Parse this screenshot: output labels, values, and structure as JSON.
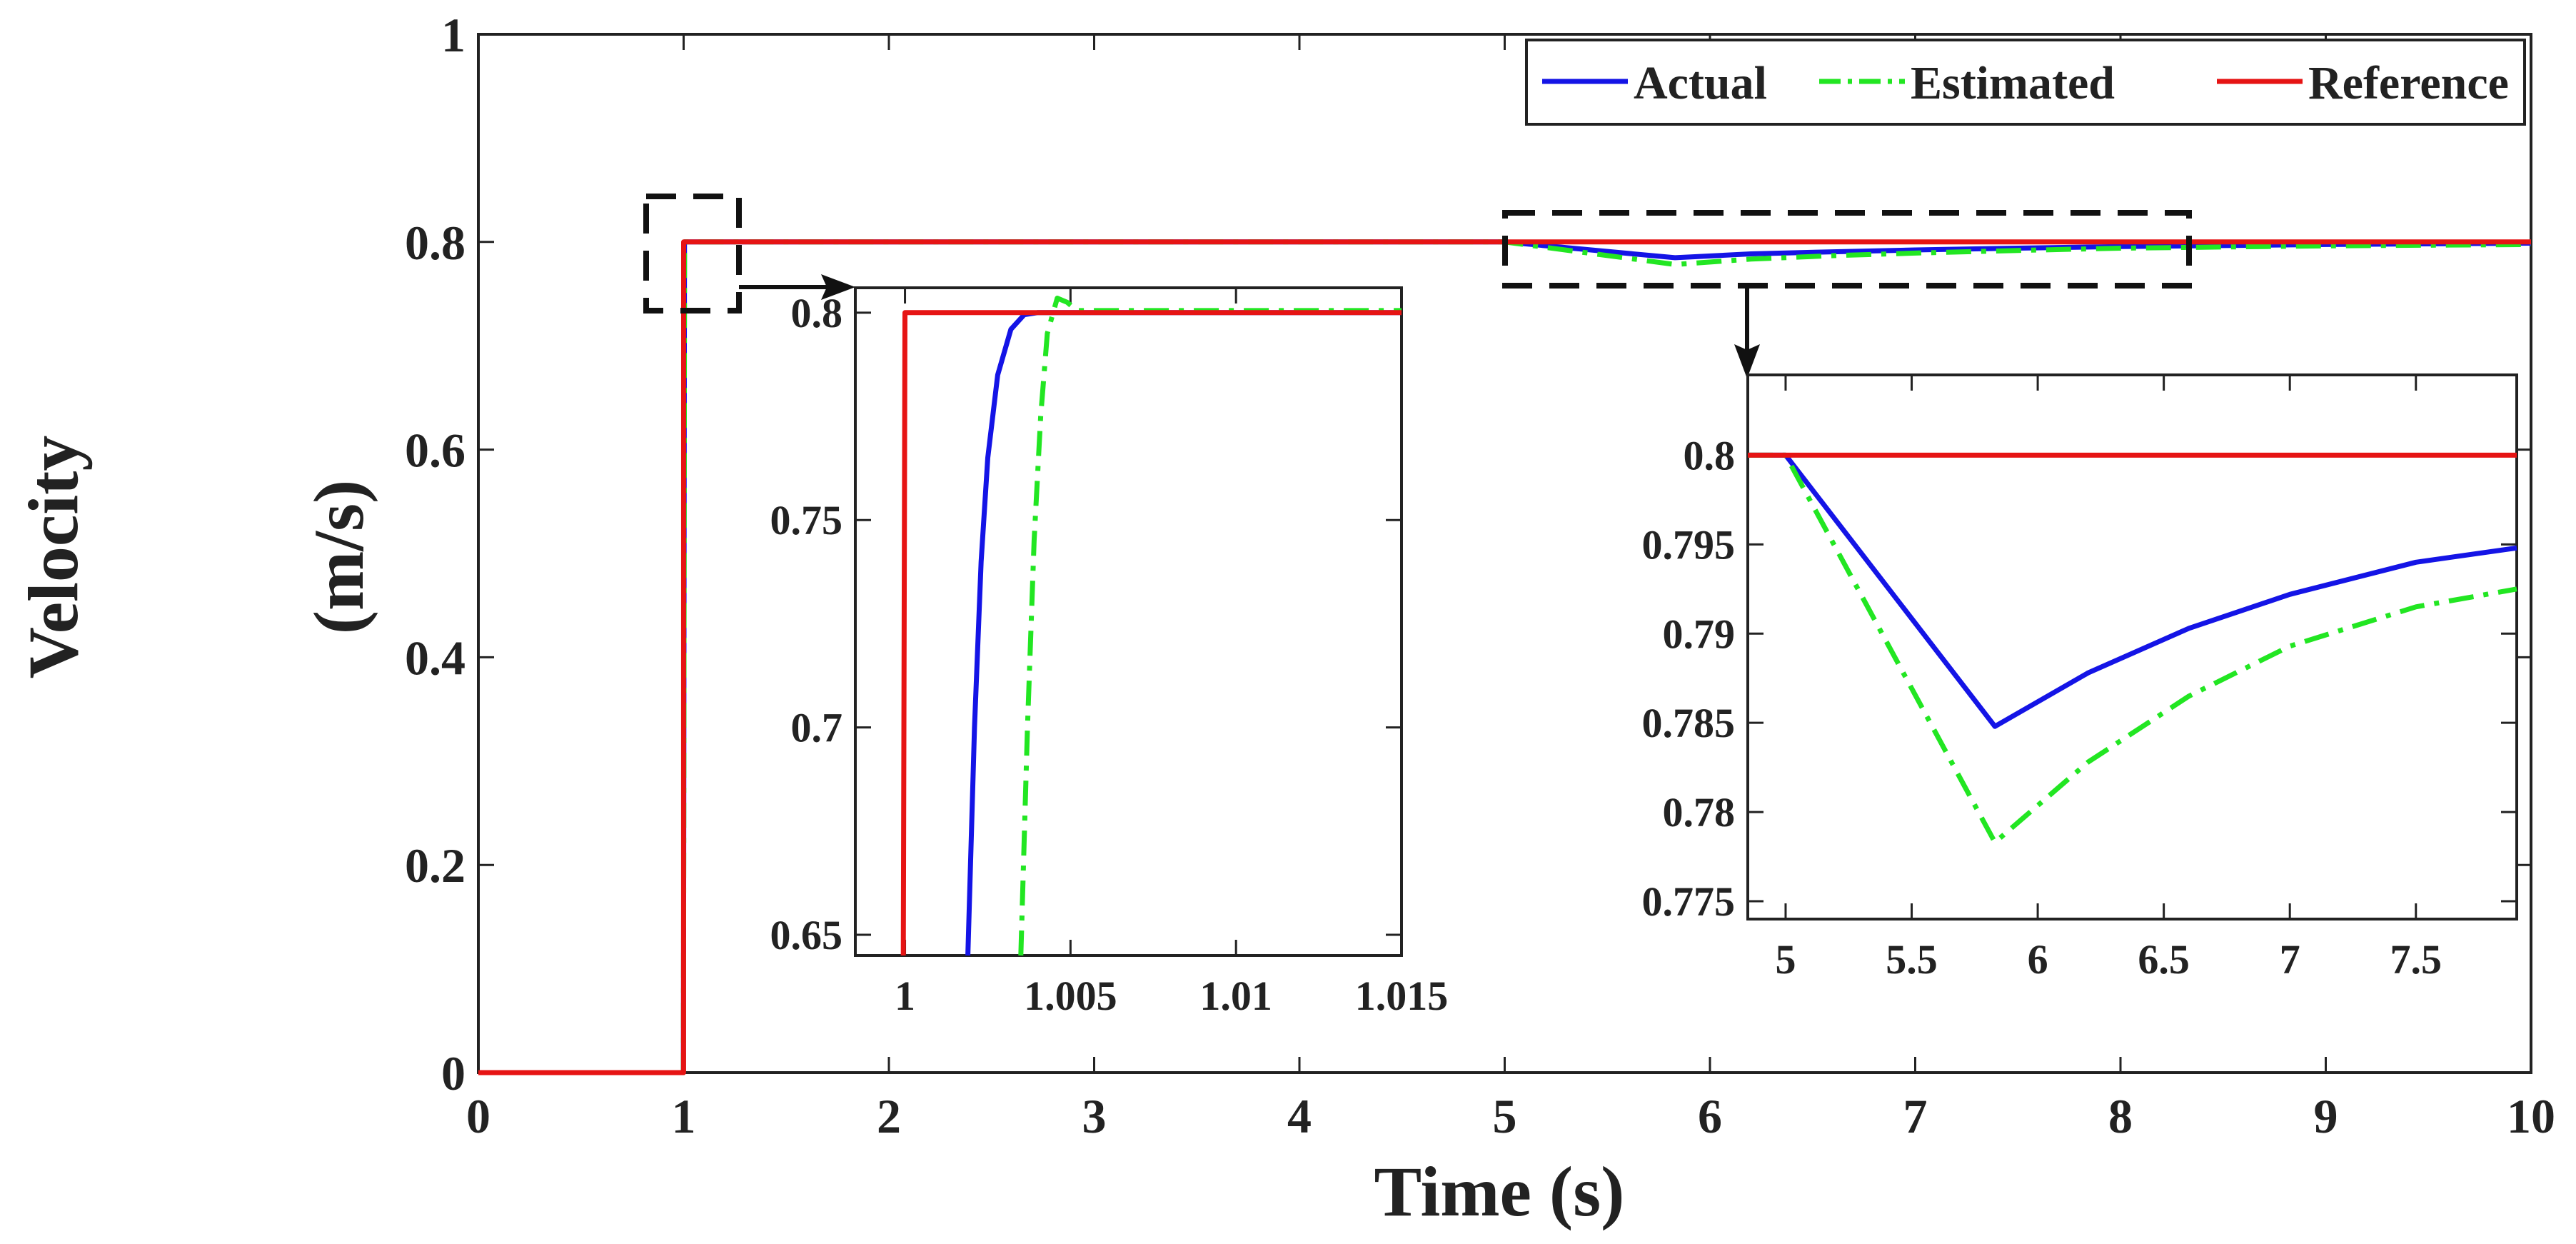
{
  "chart_data": {
    "type": "line",
    "title": "",
    "xlabel": "Time (s)",
    "ylabel_outer": "Velocity",
    "ylabel_inner": "(m/s)",
    "xlim": [
      0,
      10
    ],
    "ylim": [
      0,
      1
    ],
    "xticks": [
      "0",
      "1",
      "2",
      "3",
      "4",
      "5",
      "6",
      "7",
      "8",
      "9",
      "10"
    ],
    "yticks": [
      "0",
      "0.2",
      "0.4",
      "0.6",
      "0.8",
      "1"
    ],
    "grid": false,
    "legend_position": "top-right",
    "legend": [
      "Actual",
      "Estimated",
      "Reference"
    ],
    "series": [
      {
        "name": "Actual",
        "color": "#1414e6",
        "style": "solid",
        "x": [
          0,
          0.999,
          1.004,
          5.0,
          5.83,
          6.2,
          6.6,
          7.0,
          7.5,
          8.0,
          9.0,
          10.0
        ],
        "y": [
          0,
          0,
          0.8,
          0.8,
          0.7848,
          0.7885,
          0.7905,
          0.7923,
          0.794,
          0.7955,
          0.7975,
          0.7988
        ]
      },
      {
        "name": "Estimated",
        "color": "#22e622",
        "style": "dashdot",
        "x": [
          0,
          0.999,
          1.0045,
          5.0,
          5.83,
          6.2,
          6.6,
          7.0,
          7.5,
          8.0,
          9.0,
          10.0
        ],
        "y": [
          0,
          0,
          0.8,
          0.8,
          0.7783,
          0.7835,
          0.7868,
          0.7893,
          0.7918,
          0.794,
          0.7962,
          0.7975
        ]
      },
      {
        "name": "Reference",
        "color": "#e61414",
        "style": "solid",
        "x": [
          0,
          0.9995,
          1.0,
          10.0
        ],
        "y": [
          0,
          0,
          0.8,
          0.8
        ]
      }
    ],
    "insets": [
      {
        "name": "step-zoom",
        "xlim": [
          0.9985,
          1.015
        ],
        "ylim": [
          0.645,
          0.806
        ],
        "xticks": [
          "1",
          "1.005",
          "1.01",
          "1.015"
        ],
        "yticks": [
          "0.65",
          "0.7",
          "0.75",
          "0.8"
        ],
        "series": [
          {
            "name": "Actual",
            "x": [
              1.0019,
              1.0021,
              1.0023,
              1.0025,
              1.0028,
              1.0032,
              1.0036,
              1.004,
              1.015
            ],
            "y": [
              0.645,
              0.7,
              0.74,
              0.765,
              0.785,
              0.796,
              0.7995,
              0.8,
              0.8
            ]
          },
          {
            "name": "Estimated",
            "x": [
              1.0035,
              1.0037,
              1.0039,
              1.0041,
              1.0043,
              1.0046,
              1.0049,
              1.0052,
              1.0056,
              1.006,
              1.015
            ],
            "y": [
              0.645,
              0.7,
              0.745,
              0.775,
              0.795,
              0.8035,
              0.8025,
              0.8005,
              0.8005,
              0.8005,
              0.8005
            ]
          },
          {
            "name": "Reference",
            "x": [
              0.99995,
              1.0,
              1.015
            ],
            "y": [
              0.645,
              0.8,
              0.8
            ]
          }
        ]
      },
      {
        "name": "disturbance-zoom",
        "xlim": [
          4.85,
          7.9
        ],
        "ylim": [
          0.774,
          0.8045
        ],
        "xticks": [
          "5",
          "5.5",
          "6",
          "6.5",
          "7",
          "7.5"
        ],
        "yticks": [
          "0.775",
          "0.78",
          "0.785",
          "0.79",
          "0.795",
          "0.8"
        ],
        "series": [
          {
            "name": "Actual",
            "x": [
              4.85,
              5.0,
              5.83,
              6.2,
              6.6,
              7.0,
              7.5,
              7.9
            ],
            "y": [
              0.8,
              0.8,
              0.7848,
              0.7878,
              0.7903,
              0.7922,
              0.794,
              0.7948
            ]
          },
          {
            "name": "Estimated",
            "x": [
              4.85,
              5.0,
              5.83,
              6.2,
              6.6,
              7.0,
              7.5,
              7.9
            ],
            "y": [
              0.8,
              0.8,
              0.7783,
              0.7828,
              0.7865,
              0.7893,
              0.7915,
              0.7925
            ]
          },
          {
            "name": "Reference",
            "x": [
              4.85,
              7.9
            ],
            "y": [
              0.8,
              0.8
            ]
          }
        ]
      }
    ]
  }
}
